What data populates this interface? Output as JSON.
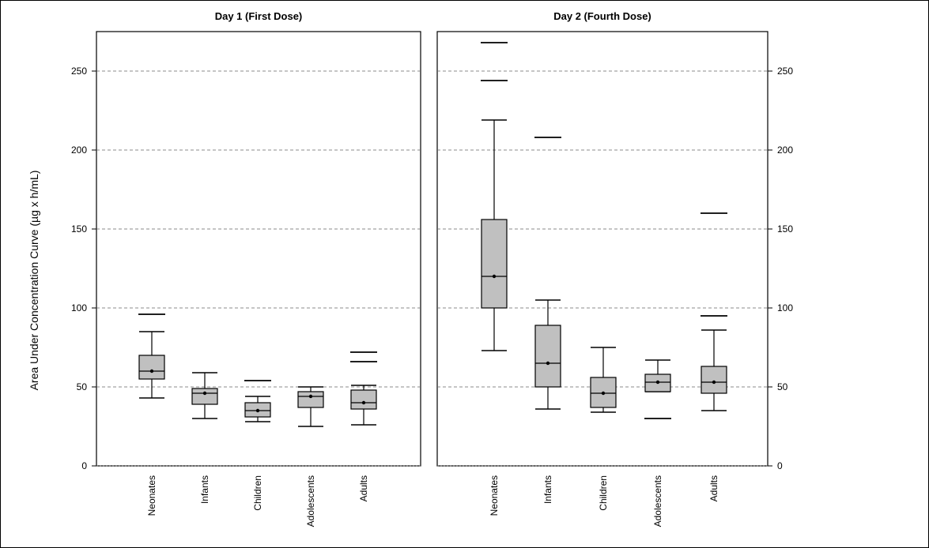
{
  "chart_data": [
    {
      "type": "box",
      "title": "Day 1 (First Dose)",
      "ylabel": "Area Under Concentration Curve (µg x h/mL)",
      "ylim": [
        0,
        275
      ],
      "yticks": [
        0,
        50,
        100,
        150,
        200,
        250
      ],
      "grid": true,
      "categories": [
        "Neonates",
        "Infants",
        "Children",
        "Adolescents",
        "Adults"
      ],
      "boxes": [
        {
          "whisker_low": 43,
          "q1": 55,
          "median": 60,
          "mean": 60,
          "q3": 70,
          "whisker_high": 85,
          "outliers": [
            96
          ]
        },
        {
          "whisker_low": 30,
          "q1": 39,
          "median": 46,
          "mean": 46,
          "q3": 49,
          "whisker_high": 59,
          "outliers": []
        },
        {
          "whisker_low": 28,
          "q1": 31,
          "median": 35,
          "mean": 35,
          "q3": 40,
          "whisker_high": 44,
          "outliers": [
            54
          ]
        },
        {
          "whisker_low": 25,
          "q1": 37,
          "median": 44,
          "mean": 44,
          "q3": 47,
          "whisker_high": 50,
          "outliers": []
        },
        {
          "whisker_low": 26,
          "q1": 36,
          "median": 40,
          "mean": 40,
          "q3": 48,
          "whisker_high": 51,
          "outliers": [
            66,
            72
          ]
        }
      ]
    },
    {
      "type": "box",
      "title": "Day 2 (Fourth Dose)",
      "ylim": [
        0,
        275
      ],
      "yticks": [
        0,
        50,
        100,
        150,
        200,
        250
      ],
      "grid": true,
      "categories": [
        "Neonates",
        "Infants",
        "Children",
        "Adolescents",
        "Adults"
      ],
      "boxes": [
        {
          "whisker_low": 73,
          "q1": 100,
          "median": 120,
          "mean": 120,
          "q3": 156,
          "whisker_high": 219,
          "outliers": [
            244,
            268
          ]
        },
        {
          "whisker_low": 36,
          "q1": 50,
          "median": 65,
          "mean": 65,
          "q3": 89,
          "whisker_high": 105,
          "outliers": [
            208
          ]
        },
        {
          "whisker_low": 34,
          "q1": 37,
          "median": 46,
          "mean": 46,
          "q3": 56,
          "whisker_high": 75,
          "outliers": []
        },
        {
          "whisker_low": 47,
          "q1": 47,
          "median": 53,
          "mean": 53,
          "q3": 58,
          "whisker_high": 67,
          "outliers": [
            30
          ]
        },
        {
          "whisker_low": 35,
          "q1": 46,
          "median": 53,
          "mean": 53,
          "q3": 63,
          "whisker_high": 86,
          "outliers": [
            95,
            160
          ]
        }
      ]
    }
  ]
}
